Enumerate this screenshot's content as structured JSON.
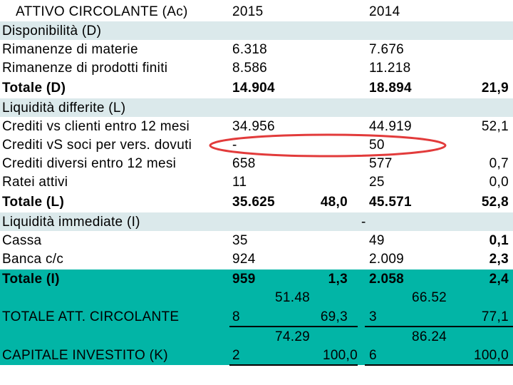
{
  "colors": {
    "band": "#dbe9eb",
    "total_band": "#02b5a6",
    "highlight": "#e23b3b"
  },
  "header": {
    "col1": "ATTIVO CIRCOLANTE (Ac)",
    "col2": "2015",
    "col3": "2014"
  },
  "rows": {
    "disp": "Disponibilità (D)",
    "rim_mat": {
      "label": "Rimanenze di materie",
      "v2015": "6.318",
      "v2014": "7.676"
    },
    "rim_prod": {
      "label": "Rimanenze di prodotti finiti",
      "v2015": "8.586",
      "v2014": "11.218"
    },
    "tot_d": {
      "label": "Totale (D)",
      "v2015": "14.904",
      "v2014": "18.894",
      "pct2014": "21,9"
    },
    "liq_diff": "Liquidità differite (L)",
    "crediti_clienti": {
      "label": "Crediti vs clienti entro 12 mesi",
      "v2015": "34.956",
      "v2014": "44.919",
      "pct2014": "52,1"
    },
    "crediti_soci": {
      "label": "Crediti vS soci per vers. dovuti",
      "v2015": "-",
      "v2014": "50"
    },
    "crediti_diversi": {
      "label": "Crediti diversi entro 12 mesi",
      "v2015": "658",
      "v2014": "577",
      "pct2014": "0,7"
    },
    "ratei": {
      "label": "Ratei attivi",
      "v2015": "11",
      "v2014": "25",
      "pct2014": "0,0"
    },
    "tot_l": {
      "label": "Totale (L)",
      "v2015": "35.625",
      "pct2015": "48,0",
      "v2014": "45.571",
      "pct2014": "52,8"
    },
    "liq_imm": {
      "label": "Liquidità immediate (I)",
      "v2014_dash": "-"
    },
    "cassa": {
      "label": "Cassa",
      "v2015": "35",
      "v2014": "49",
      "pct2014": "0,1"
    },
    "banca": {
      "label": "Banca c/c",
      "v2015": "924",
      "v2014": "2.009",
      "pct2014": "2,3"
    },
    "tot_i": {
      "label": "Totale (I)",
      "v2015": "959",
      "pct2015": "1,3",
      "v2014": "2.058",
      "pct2014": "2,4"
    },
    "tot_att": {
      "label": "TOTALE ATT. CIRCOLANTE",
      "v2015_a": "51.48",
      "v2015_b": "8",
      "pct2015": "69,3",
      "v2014_a": "66.52",
      "v2014_b": "3",
      "pct2014": "77,1"
    },
    "cap_inv": {
      "label": "CAPITALE INVESTITO (K)",
      "v2015_a": "74.29",
      "v2015_b": "2",
      "pct2015": "100,0",
      "v2014_a": "86.24",
      "v2014_b": "6",
      "pct2014": "100,0"
    }
  }
}
